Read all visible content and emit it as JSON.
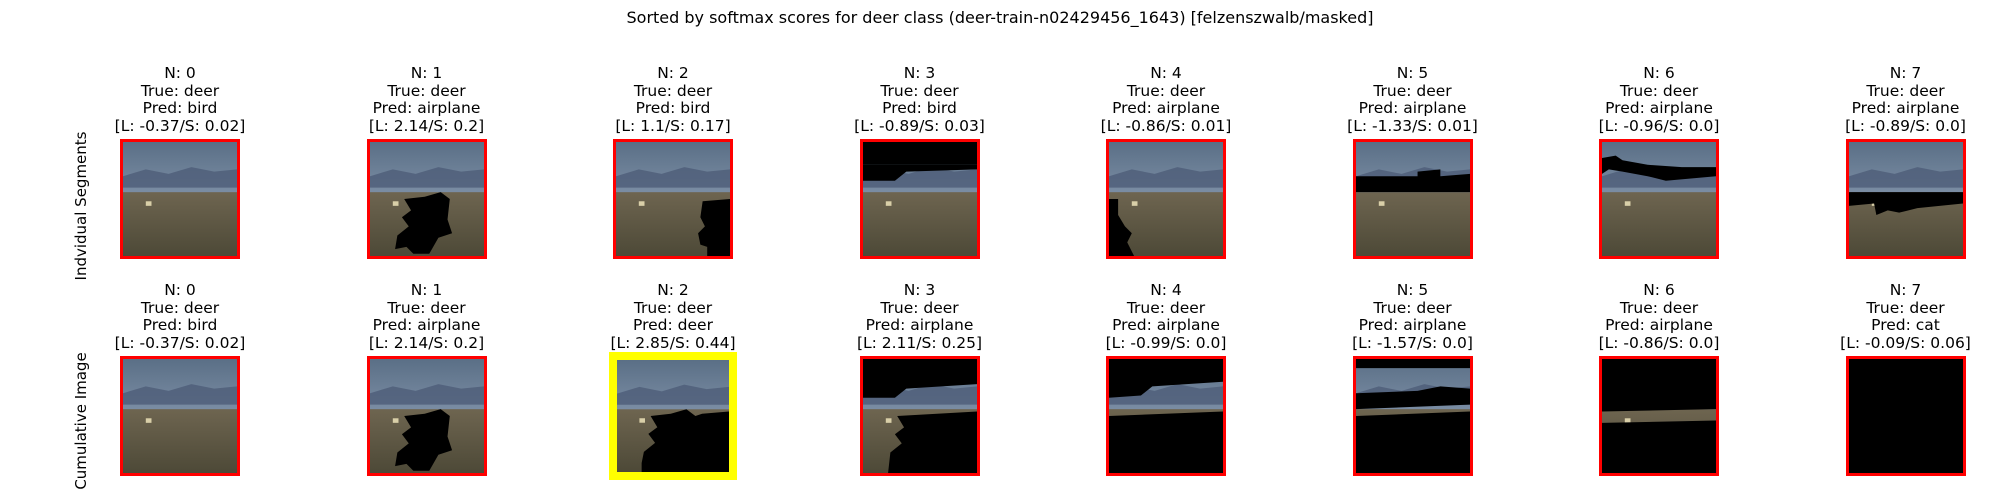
{
  "figure": {
    "title": "Sorted by softmax scores for deer class (deer-train-n02429456_1643) [felzenszwalb/masked]",
    "row_labels": [
      "Indvidual Segments",
      "Cumulative Image"
    ]
  },
  "chart_data": {
    "type": "image-grid",
    "title": "Sorted by softmax scores for deer class (deer-train-n02429456_1643) [felzenszwalb/masked]",
    "rows": [
      {
        "label": "Indvidual Segments",
        "cells": [
          {
            "n": "N: 0",
            "true": "True: deer",
            "pred": "Pred: bird",
            "scores": "[L: -0.37/S: 0.02]",
            "logit": -0.37,
            "softmax": 0.02,
            "mask": "none",
            "highlight": false
          },
          {
            "n": "N: 1",
            "true": "True: deer",
            "pred": "Pred: airplane",
            "scores": "[L: 2.14/S: 0.2]",
            "logit": 2.14,
            "softmax": 0.2,
            "mask": "blob-center",
            "highlight": false
          },
          {
            "n": "N: 2",
            "true": "True: deer",
            "pred": "Pred: bird",
            "scores": "[L: 1.1/S: 0.17]",
            "logit": 1.1,
            "softmax": 0.17,
            "mask": "right-lower",
            "highlight": false
          },
          {
            "n": "N: 3",
            "true": "True: deer",
            "pred": "Pred: bird",
            "scores": "[L: -0.89/S: 0.03]",
            "logit": -0.89,
            "softmax": 0.03,
            "mask": "top-band",
            "highlight": false
          },
          {
            "n": "N: 4",
            "true": "True: deer",
            "pred": "Pred: airplane",
            "scores": "[L: -0.86/S: 0.01]",
            "logit": -0.86,
            "softmax": 0.01,
            "mask": "left-lower",
            "highlight": false
          },
          {
            "n": "N: 5",
            "true": "True: deer",
            "pred": "Pred: airplane",
            "scores": "[L: -1.33/S: 0.01]",
            "logit": -1.33,
            "softmax": 0.01,
            "mask": "mid-band",
            "highlight": false
          },
          {
            "n": "N: 6",
            "true": "True: deer",
            "pred": "Pred: airplane",
            "scores": "[L: -0.96/S: 0.0]",
            "logit": -0.96,
            "softmax": 0.0,
            "mask": "upper-band",
            "highlight": false
          },
          {
            "n": "N: 7",
            "true": "True: deer",
            "pred": "Pred: airplane",
            "scores": "[L: -0.89/S: 0.0]",
            "logit": -0.89,
            "softmax": 0.0,
            "mask": "horizon-band",
            "highlight": false
          }
        ]
      },
      {
        "label": "Cumulative Image",
        "cells": [
          {
            "n": "N: 0",
            "true": "True: deer",
            "pred": "Pred: bird",
            "scores": "[L: -0.37/S: 0.02]",
            "logit": -0.37,
            "softmax": 0.02,
            "mask": "none",
            "highlight": false
          },
          {
            "n": "N: 1",
            "true": "True: deer",
            "pred": "Pred: airplane",
            "scores": "[L: 2.14/S: 0.2]",
            "logit": 2.14,
            "softmax": 0.2,
            "mask": "blob-center",
            "highlight": false
          },
          {
            "n": "N: 2",
            "true": "True: deer",
            "pred": "Pred: deer",
            "scores": "[L: 2.85/S: 0.44]",
            "logit": 2.85,
            "softmax": 0.44,
            "mask": "cum-2",
            "highlight": true
          },
          {
            "n": "N: 3",
            "true": "True: deer",
            "pred": "Pred: airplane",
            "scores": "[L: 2.11/S: 0.25]",
            "logit": 2.11,
            "softmax": 0.25,
            "mask": "cum-3",
            "highlight": false
          },
          {
            "n": "N: 4",
            "true": "True: deer",
            "pred": "Pred: airplane",
            "scores": "[L: -0.99/S: 0.0]",
            "logit": -0.99,
            "softmax": 0.0,
            "mask": "cum-4",
            "highlight": false
          },
          {
            "n": "N: 5",
            "true": "True: deer",
            "pred": "Pred: airplane",
            "scores": "[L: -1.57/S: 0.0]",
            "logit": -1.57,
            "softmax": 0.0,
            "mask": "cum-5",
            "highlight": false
          },
          {
            "n": "N: 6",
            "true": "True: deer",
            "pred": "Pred: airplane",
            "scores": "[L: -0.86/S: 0.0]",
            "logit": -0.86,
            "softmax": 0.0,
            "mask": "cum-6",
            "highlight": false
          },
          {
            "n": "N: 7",
            "true": "True: deer",
            "pred": "Pred: cat",
            "scores": "[L: -0.09/S: 0.06]",
            "logit": -0.09,
            "softmax": 0.06,
            "mask": "all",
            "highlight": false
          }
        ]
      }
    ],
    "colors": {
      "frame": "#ff0000",
      "highlight_frame": "#ffff00",
      "sky_top": "#5a6f86",
      "sky_bottom": "#7d8fa6",
      "mountains": "#4d5d78",
      "ground_top": "#6e6550",
      "ground_bottom": "#4d4937",
      "mask": "#000000"
    }
  }
}
